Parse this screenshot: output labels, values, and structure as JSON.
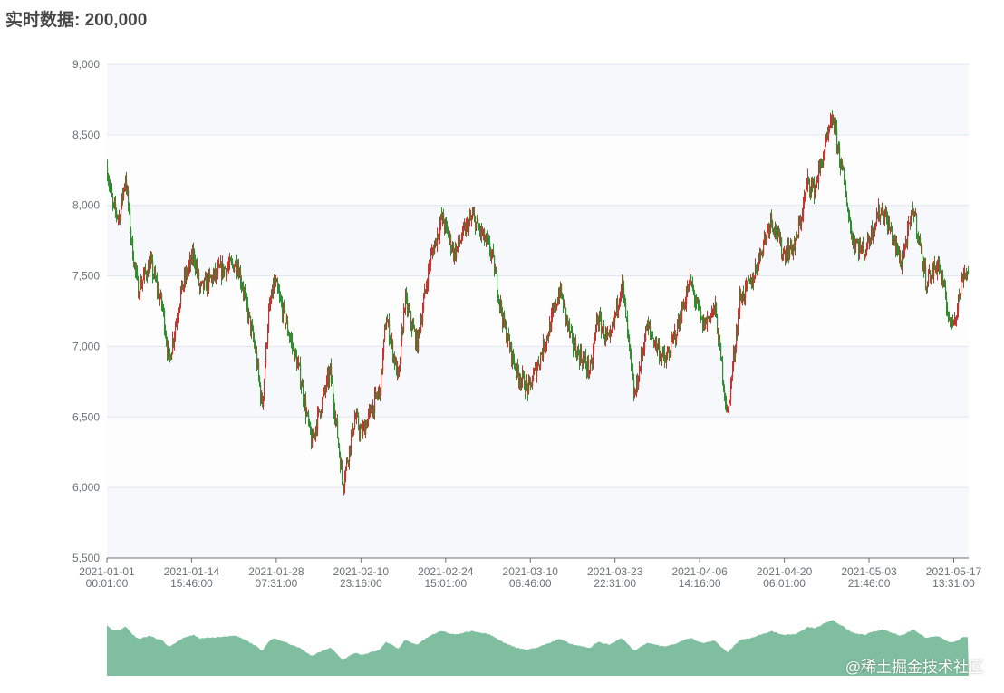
{
  "title": "实时数据: 200,000",
  "watermark": "@稀土掘金技术社区",
  "colors": {
    "up": "#c23531",
    "down": "#2f8f2f",
    "slider_fill": "#7fbf9f",
    "axis": "#6e7079",
    "grid": "#e0e6f1"
  },
  "chart_data": {
    "type": "candlestick",
    "title": "",
    "xlabel": "",
    "ylabel": "",
    "ylim": [
      5500,
      9000
    ],
    "yticks": [
      "5,500",
      "6,000",
      "6,500",
      "7,000",
      "7,500",
      "8,000",
      "8,500",
      "9,000"
    ],
    "xlim": [
      "2021-01-01 00:01",
      "2021-05-19 21:00"
    ],
    "xticks": [
      [
        "2021-01-01",
        "00:01:00"
      ],
      [
        "2021-01-14",
        "15:46:00"
      ],
      [
        "2021-01-28",
        "07:31:00"
      ],
      [
        "2021-02-10",
        "23:16:00"
      ],
      [
        "2021-02-24",
        "15:01:00"
      ],
      [
        "2021-03-10",
        "06:46:00"
      ],
      [
        "2021-03-23",
        "22:31:00"
      ],
      [
        "2021-04-06",
        "14:16:00"
      ],
      [
        "2021-04-20",
        "06:01:00"
      ],
      [
        "2021-05-03",
        "21:46:00"
      ],
      [
        "2021-05-17",
        "13:31:00"
      ]
    ],
    "grid": true,
    "split_area": true,
    "data_zoom_slider": true,
    "approx_close_series": [
      [
        "2021-01-01",
        8268
      ],
      [
        "2021-01-02",
        7979
      ],
      [
        "2021-01-03",
        7915
      ],
      [
        "2021-01-04",
        8204
      ],
      [
        "2021-01-05",
        7722
      ],
      [
        "2021-01-06",
        7400
      ],
      [
        "2021-01-08",
        7593
      ],
      [
        "2021-01-10",
        7272
      ],
      [
        "2021-01-11",
        6887
      ],
      [
        "2021-01-13",
        7400
      ],
      [
        "2021-01-15",
        7658
      ],
      [
        "2021-01-16",
        7400
      ],
      [
        "2021-01-19",
        7529
      ],
      [
        "2021-01-22",
        7593
      ],
      [
        "2021-01-23",
        7400
      ],
      [
        "2021-01-25",
        6951
      ],
      [
        "2021-01-26",
        6566
      ],
      [
        "2021-01-27",
        7208
      ],
      [
        "2021-01-28",
        7465
      ],
      [
        "2021-01-30",
        7144
      ],
      [
        "2021-02-01",
        6823
      ],
      [
        "2021-02-03",
        6309
      ],
      [
        "2021-02-04",
        6502
      ],
      [
        "2021-02-06",
        6823
      ],
      [
        "2021-02-07",
        6437
      ],
      [
        "2021-02-08",
        6020
      ],
      [
        "2021-02-10",
        6502
      ],
      [
        "2021-02-11",
        6373
      ],
      [
        "2021-02-14",
        6694
      ],
      [
        "2021-02-15",
        7208
      ],
      [
        "2021-02-17",
        6759
      ],
      [
        "2021-02-18",
        7336
      ],
      [
        "2021-02-20",
        7015
      ],
      [
        "2021-02-22",
        7593
      ],
      [
        "2021-02-24",
        7915
      ],
      [
        "2021-02-26",
        7658
      ],
      [
        "2021-02-28",
        7851
      ],
      [
        "2021-03-01",
        7915
      ],
      [
        "2021-03-04",
        7658
      ],
      [
        "2021-03-06",
        7144
      ],
      [
        "2021-03-08",
        6823
      ],
      [
        "2021-03-10",
        6694
      ],
      [
        "2021-03-13",
        7079
      ],
      [
        "2021-03-15",
        7400
      ],
      [
        "2021-03-17",
        7015
      ],
      [
        "2021-03-20",
        6823
      ],
      [
        "2021-03-21",
        7208
      ],
      [
        "2021-03-23",
        7015
      ],
      [
        "2021-03-25",
        7465
      ],
      [
        "2021-03-27",
        6630
      ],
      [
        "2021-03-29",
        7144
      ],
      [
        "2021-04-01",
        6887
      ],
      [
        "2021-04-03",
        7144
      ],
      [
        "2021-04-05",
        7465
      ],
      [
        "2021-04-07",
        7144
      ],
      [
        "2021-04-09",
        7272
      ],
      [
        "2021-04-10",
        6887
      ],
      [
        "2021-04-11",
        6502
      ],
      [
        "2021-04-13",
        7336
      ],
      [
        "2021-04-15",
        7465
      ],
      [
        "2021-04-18",
        7915
      ],
      [
        "2021-04-20",
        7658
      ],
      [
        "2021-04-22",
        7722
      ],
      [
        "2021-04-24",
        8172
      ],
      [
        "2021-04-25",
        8108
      ],
      [
        "2021-04-28",
        8621
      ],
      [
        "2021-04-30",
        8108
      ],
      [
        "2021-05-01",
        7786
      ],
      [
        "2021-05-03",
        7658
      ],
      [
        "2021-05-05",
        7915
      ],
      [
        "2021-05-06",
        7979
      ],
      [
        "2021-05-09",
        7593
      ],
      [
        "2021-05-11",
        7979
      ],
      [
        "2021-05-13",
        7465
      ],
      [
        "2021-05-15",
        7593
      ],
      [
        "2021-05-17",
        7144
      ],
      [
        "2021-05-18",
        7272
      ],
      [
        "2021-05-19",
        7529
      ]
    ]
  }
}
